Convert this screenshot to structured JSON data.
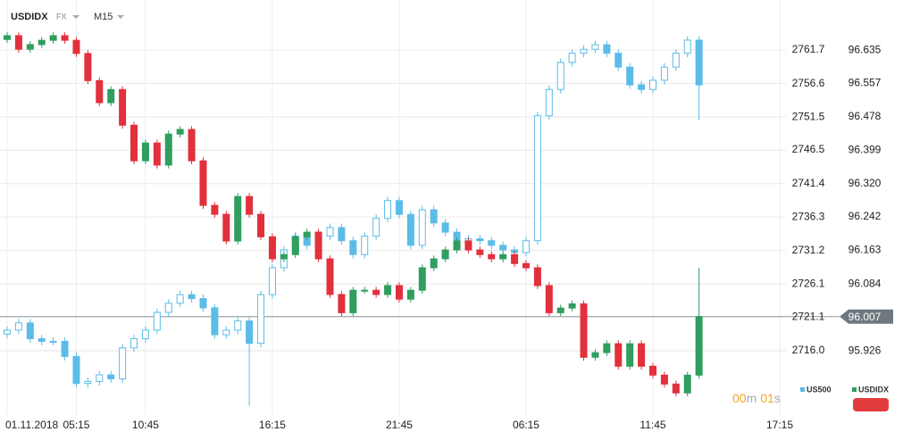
{
  "toolbar": {
    "symbol": "USDIDX",
    "market": "FX",
    "timeframe": "M15"
  },
  "timer": [
    "00",
    "m",
    "01",
    "s"
  ],
  "chart_data": {
    "type": "candlestick",
    "categories": [
      "01.11.2018",
      null,
      null,
      null,
      null,
      null,
      "05:15",
      null,
      null,
      null,
      null,
      null,
      "10:45",
      null,
      null,
      null,
      null,
      null,
      null,
      null,
      null,
      null,
      null,
      "16:15",
      null,
      null,
      null,
      null,
      null,
      null,
      null,
      null,
      null,
      null,
      "21:45",
      null,
      null,
      null,
      null,
      null,
      null,
      null,
      null,
      null,
      null,
      "06:15",
      null,
      null,
      null,
      null,
      null,
      null,
      null,
      null,
      null,
      null,
      "11:45",
      null,
      null,
      null,
      null,
      null,
      null,
      null,
      null,
      null,
      null,
      "17:15"
    ],
    "ylim": [
      2706.2,
      2769.3
    ],
    "yticks": [
      2761.7,
      2756.6,
      2751.5,
      2746.5,
      2741.4,
      2736.3,
      2731.2,
      2726.1,
      2721.1,
      {
        "value": 2716.0,
        "label": "2716.0"
      }
    ],
    "y2lim": [
      95.775,
      96.753
    ],
    "y2ticks": [
      96.635,
      96.557,
      96.478,
      96.399,
      {
        "value": 96.32,
        "label": "96.320"
      },
      96.242,
      96.163,
      96.084,
      95.926
    ],
    "grid": true,
    "current_value": 96.007,
    "series": [
      {
        "name": "US500",
        "color": "#5bbce8",
        "axis": "y",
        "open": [
          2718.5,
          2719.1,
          2720.2,
          2717.8,
          2717.4,
          2717.4,
          2715.1,
          2711.0,
          2711.3,
          2712.3,
          2711.7,
          2716.4,
          2717.8,
          2719.1,
          2721.8,
          2723.2,
          2724.5,
          2723.9,
          2722.5,
          2718.4,
          2719.1,
          2720.5,
          2717.1,
          2724.5,
          2728.6,
          2731.3,
          2733.4,
          2732.0,
          2733.4,
          2734.7,
          2732.7,
          2730.6,
          2733.4,
          2736.1,
          2738.8,
          2736.7,
          2732.0,
          2737.4,
          2735.4,
          2734.0,
          2732.7,
          2733.0,
          2732.7,
          2732.0,
          2731.3,
          2730.9,
          2732.7,
          2751.7,
          2755.7,
          2759.8,
          2761.2,
          2761.8,
          2762.5,
          2761.2,
          2759.1,
          2756.4,
          2755.7,
          2757.1,
          2759.1,
          2761.2,
          2763.2,
          null,
          null,
          null,
          null,
          null,
          null,
          null
        ],
        "high": [
          2719.7,
          2720.8,
          2720.8,
          2718.4,
          2718.0,
          2718.0,
          2715.7,
          2711.9,
          2712.9,
          2712.9,
          2717.0,
          2718.4,
          2719.7,
          2722.4,
          2723.8,
          2725.1,
          2725.1,
          2724.5,
          2723.1,
          2719.7,
          2721.1,
          2721.1,
          2725.1,
          2729.2,
          2731.9,
          2734.0,
          2734.0,
          2734.0,
          2735.3,
          2735.3,
          2733.3,
          2734.0,
          2736.7,
          2739.4,
          2739.4,
          2737.3,
          2738.0,
          2738.0,
          2736.0,
          2734.6,
          2733.6,
          2733.6,
          2733.3,
          2732.6,
          2731.9,
          2733.3,
          2752.3,
          2756.3,
          2760.4,
          2761.8,
          2762.4,
          2763.1,
          2763.1,
          2761.8,
          2759.7,
          2757.0,
          2757.7,
          2759.7,
          2761.8,
          2763.8,
          2763.8,
          null,
          null,
          null,
          null,
          null,
          null,
          null
        ],
        "low": [
          2717.9,
          2718.5,
          2717.2,
          2716.8,
          2716.8,
          2714.5,
          2710.4,
          2710.4,
          2710.7,
          2711.1,
          2711.1,
          2715.8,
          2717.2,
          2718.5,
          2721.2,
          2722.6,
          2723.3,
          2721.9,
          2717.8,
          2717.8,
          2718.5,
          2707.6,
          2716.5,
          2723.9,
          2728.0,
          2730.7,
          2731.4,
          2731.4,
          2732.8,
          2732.1,
          2730.0,
          2730.0,
          2732.8,
          2735.5,
          2736.1,
          2731.4,
          2731.4,
          2734.8,
          2733.4,
          2732.1,
          2732.1,
          2732.1,
          2731.4,
          2730.7,
          2730.3,
          2730.3,
          2732.1,
          2751.1,
          2755.1,
          2759.2,
          2760.6,
          2761.2,
          2760.6,
          2758.5,
          2755.8,
          2755.1,
          2755.1,
          2756.5,
          2758.5,
          2760.6,
          2751.0,
          null,
          null,
          null,
          null,
          null,
          null,
          null
        ],
        "close": [
          2719.1,
          2720.2,
          2717.8,
          2717.4,
          2717.4,
          2715.1,
          2711.0,
          2711.3,
          2712.3,
          2711.7,
          2716.4,
          2717.8,
          2719.1,
          2721.8,
          2723.2,
          2724.5,
          2723.9,
          2722.5,
          2718.4,
          2719.1,
          2720.5,
          2717.1,
          2724.5,
          2728.6,
          2731.3,
          2733.4,
          2732.0,
          2733.4,
          2734.7,
          2732.7,
          2730.6,
          2733.4,
          2736.1,
          2738.8,
          2736.7,
          2732.0,
          2737.4,
          2735.4,
          2734.0,
          2732.7,
          2733.0,
          2732.7,
          2732.0,
          2731.3,
          2730.9,
          2732.7,
          2751.7,
          2755.7,
          2759.8,
          2761.2,
          2761.8,
          2762.5,
          2761.2,
          2759.1,
          2756.4,
          2755.7,
          2757.1,
          2759.1,
          2761.2,
          2763.2,
          2756.4,
          null,
          null,
          null,
          null,
          null,
          null,
          null
        ]
      },
      {
        "name": "USDIDX",
        "color": "#2f9e5e",
        "down_color": "#e2303c",
        "axis": "y2",
        "open": [
          96.66,
          96.669,
          96.637,
          96.648,
          96.658,
          96.669,
          96.658,
          96.627,
          96.563,
          96.511,
          96.542,
          96.458,
          96.374,
          96.416,
          96.364,
          96.437,
          96.448,
          96.374,
          96.269,
          96.248,
          96.185,
          96.29,
          96.248,
          96.195,
          96.143,
          96.153,
          96.195,
          96.206,
          96.143,
          96.059,
          96.016,
          96.069,
          96.069,
          96.059,
          96.08,
          96.048,
          96.069,
          96.122,
          96.143,
          96.164,
          96.185,
          96.164,
          96.153,
          96.143,
          96.153,
          96.132,
          96.122,
          96.08,
          96.016,
          96.027,
          96.037,
          95.911,
          95.922,
          95.943,
          95.89,
          95.943,
          95.89,
          95.869,
          95.848,
          95.827,
          95.869,
          null,
          null,
          null,
          null,
          null,
          null,
          null
        ],
        "high": [
          96.677,
          96.677,
          96.656,
          96.666,
          96.677,
          96.677,
          96.666,
          96.635,
          96.571,
          96.55,
          96.55,
          96.466,
          96.424,
          96.424,
          96.445,
          96.456,
          96.456,
          96.382,
          96.277,
          96.256,
          96.298,
          96.298,
          96.256,
          96.203,
          96.161,
          96.203,
          96.214,
          96.214,
          96.151,
          96.067,
          96.077,
          96.077,
          96.077,
          96.088,
          96.088,
          96.077,
          96.13,
          96.151,
          96.172,
          96.193,
          96.193,
          96.172,
          96.161,
          96.161,
          96.161,
          96.14,
          96.13,
          96.088,
          96.035,
          96.045,
          96.045,
          95.93,
          95.951,
          95.951,
          95.951,
          95.951,
          95.898,
          95.877,
          95.856,
          95.877,
          96.122,
          null,
          null,
          null,
          null,
          null,
          null,
          null
        ],
        "low": [
          96.652,
          96.629,
          96.629,
          96.64,
          96.65,
          96.65,
          96.619,
          96.555,
          96.503,
          96.503,
          96.45,
          96.366,
          96.366,
          96.356,
          96.356,
          96.429,
          96.366,
          96.261,
          96.24,
          96.177,
          96.177,
          96.24,
          96.187,
          96.135,
          96.135,
          96.145,
          96.187,
          96.135,
          96.051,
          96.008,
          96.008,
          96.061,
          96.051,
          96.051,
          96.04,
          96.04,
          96.061,
          96.114,
          96.135,
          96.156,
          96.156,
          96.145,
          96.135,
          96.135,
          96.124,
          96.114,
          96.072,
          96.008,
          96.008,
          96.019,
          95.903,
          95.903,
          95.914,
          95.882,
          95.882,
          95.882,
          95.861,
          95.84,
          95.819,
          95.819,
          95.861,
          null,
          null,
          null,
          null,
          null,
          null,
          null
        ],
        "close": [
          96.669,
          96.637,
          96.648,
          96.658,
          96.669,
          96.658,
          96.627,
          96.563,
          96.511,
          96.542,
          96.458,
          96.374,
          96.416,
          96.364,
          96.437,
          96.448,
          96.374,
          96.269,
          96.248,
          96.185,
          96.29,
          96.248,
          96.195,
          96.143,
          96.153,
          96.195,
          96.206,
          96.143,
          96.059,
          96.016,
          96.069,
          96.069,
          96.059,
          96.08,
          96.048,
          96.069,
          96.122,
          96.143,
          96.164,
          96.185,
          96.164,
          96.153,
          96.143,
          96.153,
          96.132,
          96.122,
          96.08,
          96.016,
          96.027,
          96.037,
          95.911,
          95.922,
          95.943,
          95.89,
          95.943,
          95.89,
          95.869,
          95.848,
          95.827,
          95.869,
          96.007,
          null,
          null,
          null,
          null,
          null,
          null,
          null
        ]
      }
    ]
  }
}
